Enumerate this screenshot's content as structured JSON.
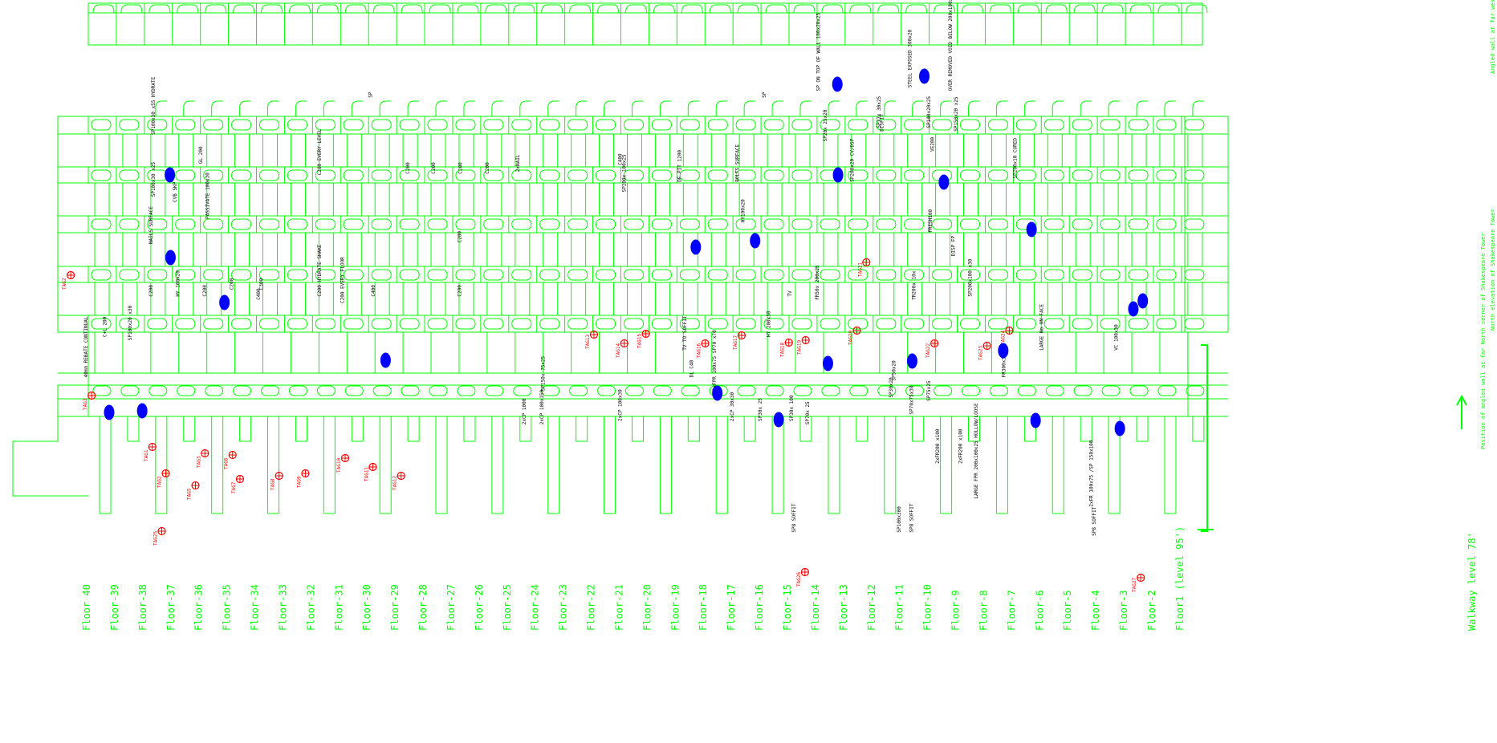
{
  "colors": {
    "background": "#ffffff",
    "structure": "#00ff00",
    "note_text": "#000000",
    "tag": "#ff0000",
    "marker": "#0000ff"
  },
  "floors": [
    "Floor 40",
    "Floor-39",
    "Floor-38",
    "Floor-37",
    "Floor-36",
    "Floor-35",
    "Floor-34",
    "Floor-33",
    "Floor-32",
    "Floor-31",
    "Floor-30",
    "Floor-29",
    "Floor-28",
    "Floor-27",
    "Floor-26",
    "Floor-25",
    "Floor-24",
    "Floor-23",
    "Floor-22",
    "Floor-21",
    "Floor-20",
    "Floor-19",
    "Floor-18",
    "Floor-17",
    "Floor-16",
    "Floor-15",
    "Floor-14",
    "Floor-13",
    "Floor-12",
    "Floor-11",
    "Floor-10",
    "Floor-9",
    "Floor-8",
    "Floor-7",
    "Floor-6",
    "Floor-5",
    "Floor-4",
    "Floor-3",
    "Floor-2",
    "Floor1 (level 95')"
  ],
  "walkway_label": "Walkway level 78'",
  "side_notes": {
    "top": "Angled wall at far west corner of Shakespeare Tower",
    "middle": "North elevation of Shakespeare Tower",
    "bottom": "Position of angled wall at far North corner of Shakespeare Tower"
  },
  "tags": [
    {
      "label": "TAG2"
    },
    {
      "label": "TAG3"
    },
    {
      "label": "TAG1"
    },
    {
      "label": "TAG2"
    },
    {
      "label": "TAG3"
    },
    {
      "label": "TAG5"
    },
    {
      "label": "TAG6"
    },
    {
      "label": "TAG7"
    },
    {
      "label": "TAG8"
    },
    {
      "label": "TAG9"
    },
    {
      "label": "TAG10"
    },
    {
      "label": "TAG11"
    },
    {
      "label": "TAG12"
    },
    {
      "label": "TAG13"
    },
    {
      "label": "TAG14"
    },
    {
      "label": "TAG15"
    },
    {
      "label": "TAG16"
    },
    {
      "label": "TAG17"
    },
    {
      "label": "TAG18"
    },
    {
      "label": "TAG19"
    },
    {
      "label": "TAG20"
    },
    {
      "label": "TAG21"
    },
    {
      "label": "TAG22"
    },
    {
      "label": "TAG23"
    },
    {
      "label": "TAG24"
    },
    {
      "label": "TAG25"
    },
    {
      "label": "TAG26"
    },
    {
      "label": "TAG27"
    }
  ],
  "notes": [
    {
      "text": "SP100x30 x55 HYDRATE"
    },
    {
      "text": "SP100x30 x25"
    },
    {
      "text": "CVB SKP"
    },
    {
      "text": "GL 200"
    },
    {
      "text": "NAILS SURFACE"
    },
    {
      "text": "PASSIVATE 100x30"
    },
    {
      "text": "C200"
    },
    {
      "text": "HY 100x20"
    },
    {
      "text": "C200"
    },
    {
      "text": "C200"
    },
    {
      "text": "C400"
    },
    {
      "text": "C300"
    },
    {
      "text": "C200 EVERY LEVEL"
    },
    {
      "text": "C200 HYDRATE SHAKE"
    },
    {
      "text": "C200 EVERY FLOOR"
    },
    {
      "text": "C400"
    },
    {
      "text": "C200"
    },
    {
      "text": "C200"
    },
    {
      "text": "C200"
    },
    {
      "text": "C200"
    },
    {
      "text": "C200"
    },
    {
      "text": "C200"
    },
    {
      "text": "2xNAIL"
    },
    {
      "text": "SP"
    },
    {
      "text": "C400"
    },
    {
      "text": "SP200x 100x25"
    },
    {
      "text": "DF PIT 1200"
    },
    {
      "text": "BOLTS SURFACE"
    },
    {
      "text": "HY100x20"
    },
    {
      "text": "SP"
    },
    {
      "text": "SP ON TOP OF WALL 100x20x25"
    },
    {
      "text": "SP20x 25x20"
    },
    {
      "text": "SP200x20 CV/DSP"
    },
    {
      "text": "SP77x 30x25"
    },
    {
      "text": "DISFIT"
    },
    {
      "text": "STEEL EXPOSED 300x20"
    },
    {
      "text": "SP100x20x25"
    },
    {
      "text": "VE200"
    },
    {
      "text": "OVER REMOVED VOID BELOW 200x100x5"
    },
    {
      "text": "SP150x20 x25"
    },
    {
      "text": "FRESH100"
    },
    {
      "text": "SP200x10 CURED"
    },
    {
      "text": "TV"
    },
    {
      "text": "FR50x 200x25"
    },
    {
      "text": "TR200x 10x"
    },
    {
      "text": "SP200x100 x30"
    },
    {
      "text": "DISP FP"
    },
    {
      "text": "40mm REBATE CONTINUAL"
    },
    {
      "text": "C+L 200"
    },
    {
      "text": "SP100x20 x30"
    },
    {
      "text": "H7 200x50"
    },
    {
      "text": "TV TO SOFFIT"
    },
    {
      "text": "LARGE No ON FACE"
    },
    {
      "text": "VC 100x30"
    },
    {
      "text": "SP150x 75x25"
    },
    {
      "text": "DL C40"
    },
    {
      "text": "2xFPR 100x75 SP70 x70"
    },
    {
      "text": "2xCP 1000"
    },
    {
      "text": "2xCP 100x150"
    },
    {
      "text": "2xCP 100x30"
    },
    {
      "text": "2xCP 30x30"
    },
    {
      "text": "SP30x 25"
    },
    {
      "text": "SP30x 100"
    },
    {
      "text": "SP70x 25"
    },
    {
      "text": "SP30x20"
    },
    {
      "text": "SP70x75x30"
    },
    {
      "text": "FR300x300"
    },
    {
      "text": "SP50x20"
    },
    {
      "text": "SP75x25"
    },
    {
      "text": "2xFR200 x100"
    },
    {
      "text": "2xFR200 x100"
    },
    {
      "text": "LARGE FPR 200x100x25 HOLLOW/LOOSE"
    },
    {
      "text": "SP8 SOFFIT"
    },
    {
      "text": "SP100x300"
    },
    {
      "text": "SP8 SOFFIT"
    },
    {
      "text": "SP8 SOFFIT"
    },
    {
      "text": "2xFR 100x75 /SP 150x100"
    }
  ]
}
